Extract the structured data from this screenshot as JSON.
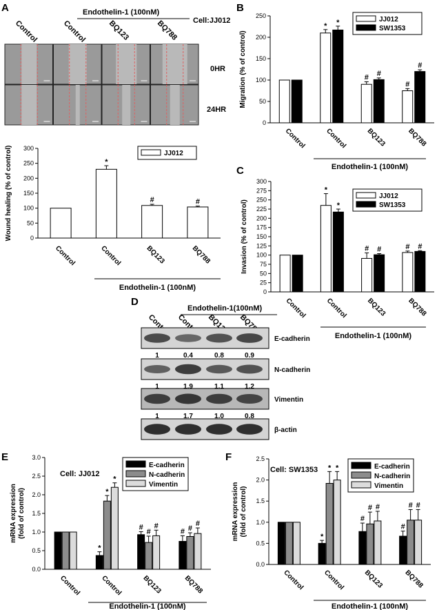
{
  "panel_letters": [
    "A",
    "B",
    "C",
    "D",
    "E",
    "F"
  ],
  "panelA": {
    "column_labels": [
      "Control",
      "Control",
      "BQ123",
      "BQ788"
    ],
    "treatment_label": "Endothelin-1 (100nM)",
    "cell_label": "Cell:JJ012",
    "row_labels": [
      "0HR",
      "24HR"
    ]
  },
  "panelD": {
    "column_labels": [
      "Control",
      "Control",
      "BQ123",
      "BQ788"
    ],
    "treatment_label": "Endothelin-1(100nM)",
    "blots": [
      {
        "name": "E-cadherin",
        "ratios": [
          "1",
          "0.4",
          "0.8",
          "0.9"
        ],
        "intensity": [
          0.75,
          0.55,
          0.7,
          0.78
        ]
      },
      {
        "name": "N-cadherin",
        "ratios": [
          "1",
          "1.9",
          "1.1",
          "1.2"
        ],
        "intensity": [
          0.6,
          0.85,
          0.65,
          0.7
        ]
      },
      {
        "name": "Vimentin",
        "ratios": [
          "1",
          "1.7",
          "1.0",
          "0.8"
        ],
        "intensity": [
          0.85,
          0.9,
          0.85,
          0.8
        ]
      },
      {
        "name": "β-actin",
        "ratios": null,
        "intensity": [
          0.95,
          0.95,
          0.95,
          0.95
        ]
      }
    ]
  },
  "chart_data": [
    {
      "panel": "A",
      "type": "bar",
      "categories": [
        "Control",
        "Control",
        "BQ123",
        "BQ788"
      ],
      "group_label": "Endothelin-1 (100nM)",
      "series": [
        {
          "name": "JJ012",
          "values": [
            100,
            230,
            109,
            104
          ],
          "errors": [
            0,
            12,
            4,
            3
          ],
          "fill": "#ffffff"
        }
      ],
      "marks": [
        [
          "",
          "*",
          "#",
          "#"
        ]
      ],
      "ylabel": "Wound healing (% of control)",
      "ylim": [
        0,
        300
      ],
      "yticks": [
        0,
        50,
        100,
        150,
        200,
        250,
        300
      ],
      "legend": "top-right"
    },
    {
      "panel": "B",
      "type": "bar",
      "categories": [
        "Control",
        "Control",
        "BQ123",
        "BQ788"
      ],
      "group_label": "Endothelin-1 (100nM)",
      "series": [
        {
          "name": "JJ012",
          "values": [
            100,
            210,
            90,
            75
          ],
          "errors": [
            0,
            8,
            6,
            5
          ],
          "fill": "#ffffff"
        },
        {
          "name": "SW1353",
          "values": [
            100,
            217,
            101,
            120
          ],
          "errors": [
            0,
            9,
            4,
            4
          ],
          "fill": "#000000"
        }
      ],
      "marks": [
        [
          "",
          "*",
          "#",
          "#"
        ],
        [
          "",
          "*",
          "#",
          "#"
        ]
      ],
      "ylabel": "Migration (% of control)",
      "ylim": [
        0,
        250
      ],
      "yticks": [
        0,
        50,
        100,
        150,
        200,
        250
      ],
      "legend": "top-right"
    },
    {
      "panel": "C",
      "type": "bar",
      "categories": [
        "Control",
        "Control",
        "BQ123",
        "BQ788"
      ],
      "group_label": "Endothelin-1 (100nM)",
      "series": [
        {
          "name": "JJ012",
          "values": [
            100,
            235,
            91,
            107
          ],
          "errors": [
            0,
            32,
            15,
            4
          ],
          "fill": "#ffffff"
        },
        {
          "name": "SW1353",
          "values": [
            100,
            217,
            101,
            110
          ],
          "errors": [
            0,
            8,
            3,
            2
          ],
          "fill": "#000000"
        }
      ],
      "marks": [
        [
          "",
          "*",
          "#",
          "#"
        ],
        [
          "",
          "*",
          "#",
          "#"
        ]
      ],
      "ylabel": "Invasion (% of control)",
      "ylim": [
        0,
        300
      ],
      "yticks": [
        0,
        25,
        50,
        75,
        100,
        125,
        150,
        175,
        200,
        225,
        250,
        275,
        300
      ],
      "legend": "top-right"
    },
    {
      "panel": "E",
      "type": "bar",
      "title": "Cell: JJ012",
      "categories": [
        "Control",
        "Control",
        "BQ123",
        "BQ788"
      ],
      "group_label": "Endothelin-1 (100nM)",
      "series": [
        {
          "name": "E-cadherin",
          "values": [
            1.0,
            0.37,
            0.93,
            0.75
          ],
          "errors": [
            0,
            0.1,
            0.08,
            0.15
          ],
          "fill": "#000000"
        },
        {
          "name": "N-cadherin",
          "values": [
            1.0,
            1.83,
            0.72,
            0.88
          ],
          "errors": [
            0,
            0.15,
            0.17,
            0.1
          ],
          "fill": "#8c8c8c"
        },
        {
          "name": "Vimentin",
          "values": [
            1.0,
            2.2,
            0.9,
            0.96
          ],
          "errors": [
            0,
            0.12,
            0.15,
            0.15
          ],
          "fill": "#dcdcdc"
        }
      ],
      "marks": [
        [
          "",
          "*",
          "#",
          "#"
        ],
        [
          "",
          "*",
          "#",
          "#"
        ],
        [
          "",
          "*",
          "#",
          "#"
        ]
      ],
      "ylabel": "mRNA expression\n(fold of control)",
      "ylim": [
        0,
        3.0
      ],
      "yticks": [
        "0.0",
        "0.5",
        "1.0",
        "1.5",
        "2.0",
        "2.5",
        "3.0"
      ],
      "legend": "top-right"
    },
    {
      "panel": "F",
      "type": "bar",
      "title": "Cell: SW1353",
      "categories": [
        "Control",
        "Control",
        "BQ123",
        "BQ788"
      ],
      "group_label": "Endothelin-1 (100nM)",
      "series": [
        {
          "name": "E-cadherin",
          "values": [
            1.0,
            0.5,
            0.78,
            0.67
          ],
          "errors": [
            0,
            0.07,
            0.2,
            0.12
          ],
          "fill": "#000000"
        },
        {
          "name": "N-cadherin",
          "values": [
            1.0,
            1.92,
            0.96,
            1.05
          ],
          "errors": [
            0,
            0.28,
            0.28,
            0.25
          ],
          "fill": "#8c8c8c"
        },
        {
          "name": "Vimentin",
          "values": [
            1.0,
            2.0,
            1.03,
            1.05
          ],
          "errors": [
            0,
            0.2,
            0.23,
            0.25
          ],
          "fill": "#dcdcdc"
        }
      ],
      "marks": [
        [
          "",
          "*",
          "#",
          "#"
        ],
        [
          "",
          "*",
          "#",
          "#"
        ],
        [
          "",
          "*",
          "#",
          "#"
        ]
      ],
      "ylabel": "mRNA expression\n(fold of control)",
      "ylim": [
        0,
        2.5
      ],
      "yticks": [
        "0.0",
        "0.5",
        "1.0",
        "1.5",
        "2.0",
        "2.5"
      ],
      "legend": "top-right"
    }
  ]
}
